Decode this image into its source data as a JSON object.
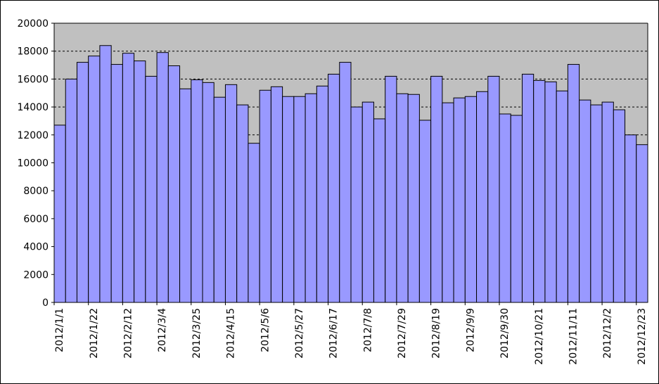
{
  "chart_data": {
    "type": "bar",
    "title": "",
    "xlabel": "",
    "ylabel": "",
    "ylim": [
      0,
      20000
    ],
    "yticks": [
      0,
      2000,
      4000,
      6000,
      8000,
      10000,
      12000,
      14000,
      16000,
      18000,
      20000
    ],
    "grid": "horizontal dashed",
    "legend": "none",
    "x_tick_labels": [
      "2012/1/1",
      "2012/1/22",
      "2012/2/12",
      "2012/3/4",
      "2012/3/25",
      "2012/4/15",
      "2012/5/6",
      "2012/5/27",
      "2012/6/17",
      "2012/7/8",
      "2012/7/29",
      "2012/8/19",
      "2012/9/9",
      "2012/9/30",
      "2012/10/21",
      "2012/11/11",
      "2012/12/2",
      "2012/12/23"
    ],
    "tick_every": 3,
    "colors": {
      "bar": "#9999ff",
      "bar_border": "#000000",
      "plot_bg": "#c0c0c0",
      "grid": "#000000"
    },
    "categories": [
      "2012/1/1",
      "2012/1/8",
      "2012/1/15",
      "2012/1/22",
      "2012/1/29",
      "2012/2/5",
      "2012/2/12",
      "2012/2/19",
      "2012/2/26",
      "2012/3/4",
      "2012/3/11",
      "2012/3/18",
      "2012/3/25",
      "2012/4/1",
      "2012/4/8",
      "2012/4/15",
      "2012/4/22",
      "2012/4/29",
      "2012/5/6",
      "2012/5/13",
      "2012/5/20",
      "2012/5/27",
      "2012/6/3",
      "2012/6/10",
      "2012/6/17",
      "2012/6/24",
      "2012/7/1",
      "2012/7/8",
      "2012/7/15",
      "2012/7/22",
      "2012/7/29",
      "2012/8/5",
      "2012/8/12",
      "2012/8/19",
      "2012/8/26",
      "2012/9/2",
      "2012/9/9",
      "2012/9/16",
      "2012/9/23",
      "2012/9/30",
      "2012/10/7",
      "2012/10/14",
      "2012/10/21",
      "2012/10/28",
      "2012/11/4",
      "2012/11/11",
      "2012/11/18",
      "2012/11/25",
      "2012/12/2",
      "2012/12/9",
      "2012/12/16",
      "2012/12/23"
    ],
    "values": [
      12700,
      16000,
      17200,
      17650,
      18400,
      17050,
      17850,
      17300,
      16200,
      17900,
      16950,
      15300,
      15950,
      15750,
      14700,
      15600,
      14150,
      11400,
      15200,
      15450,
      14750,
      14750,
      14950,
      15500,
      16350,
      17200,
      14000,
      14350,
      13150,
      16200,
      14950,
      14900,
      13050,
      16200,
      14300,
      14650,
      14750,
      15100,
      16200,
      13500,
      13400,
      16350,
      15900,
      15800,
      15150,
      17050,
      14500,
      14150,
      14350,
      13800,
      12000,
      11300
    ]
  }
}
